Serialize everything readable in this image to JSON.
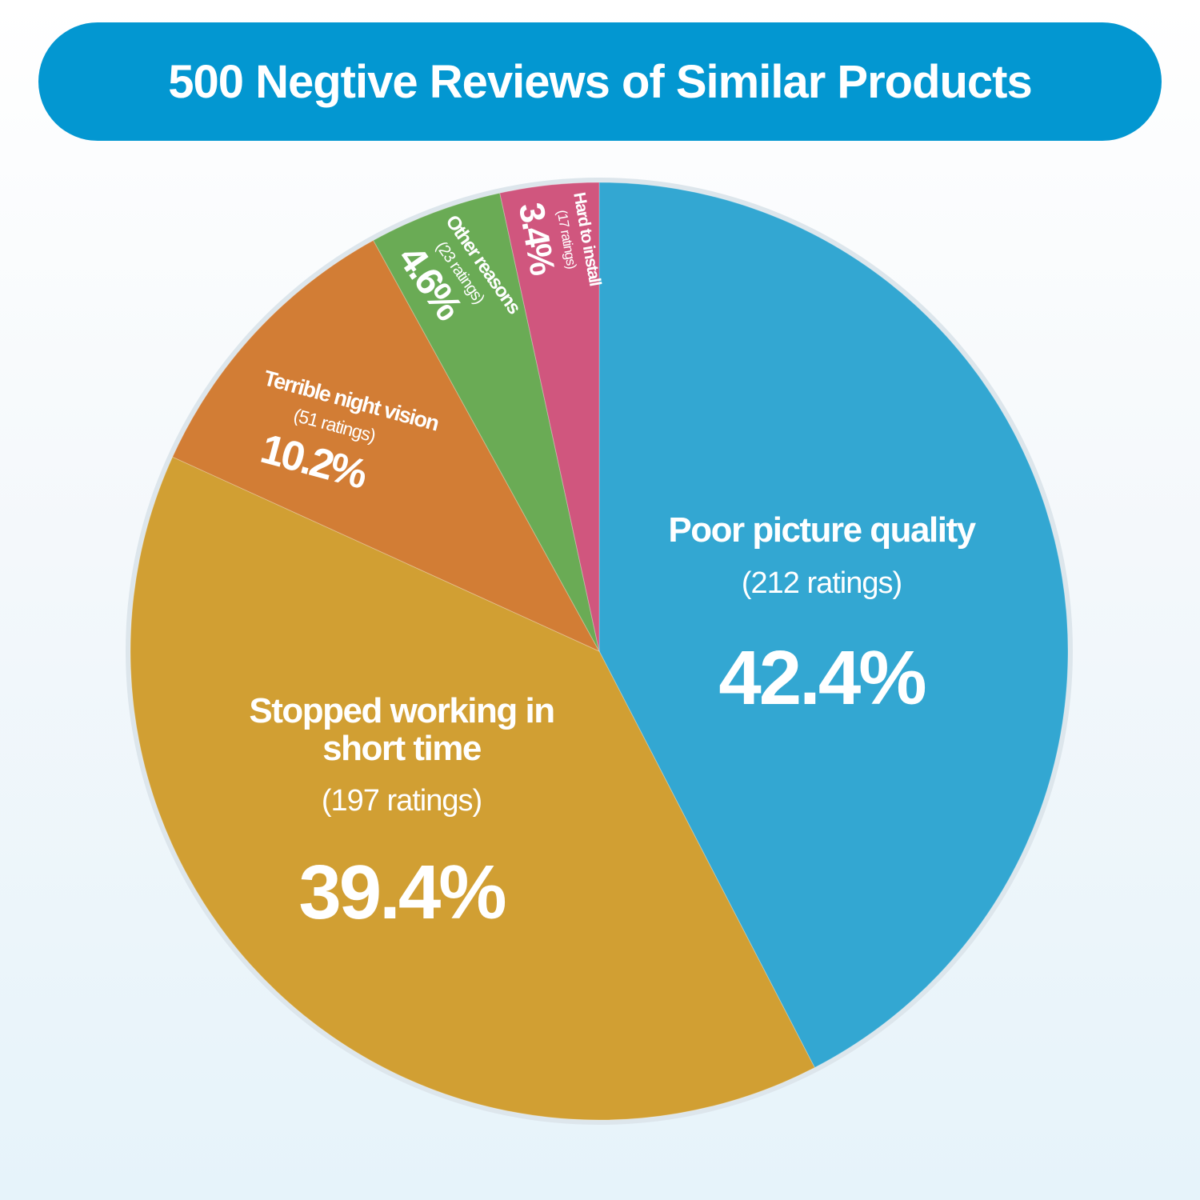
{
  "header": {
    "title": "500 Negtive Reviews of Similar Products"
  },
  "chart_data": {
    "type": "pie",
    "slices": [
      {
        "label": "Poor picture quality",
        "count_label": "(212 ratings)",
        "value": 42.4,
        "value_label": "42.4%",
        "color": "#33a7d2"
      },
      {
        "label": "Stopped working in short time",
        "count_label": "(197 ratings)",
        "value": 39.4,
        "value_label": "39.4%",
        "color": "#d19f33"
      },
      {
        "label": "Terrible night vision",
        "count_label": "(51 ratings)",
        "value": 10.2,
        "value_label": "10.2%",
        "color": "#d27d35"
      },
      {
        "label": "Other reasons",
        "count_label": "(23 ratings)",
        "value": 4.6,
        "value_label": "4.6%",
        "color": "#6aab55"
      },
      {
        "label": "Hard to install",
        "count_label": "(17 ratings)",
        "value": 3.4,
        "value_label": "3.4%",
        "color": "#d0567e"
      }
    ]
  }
}
